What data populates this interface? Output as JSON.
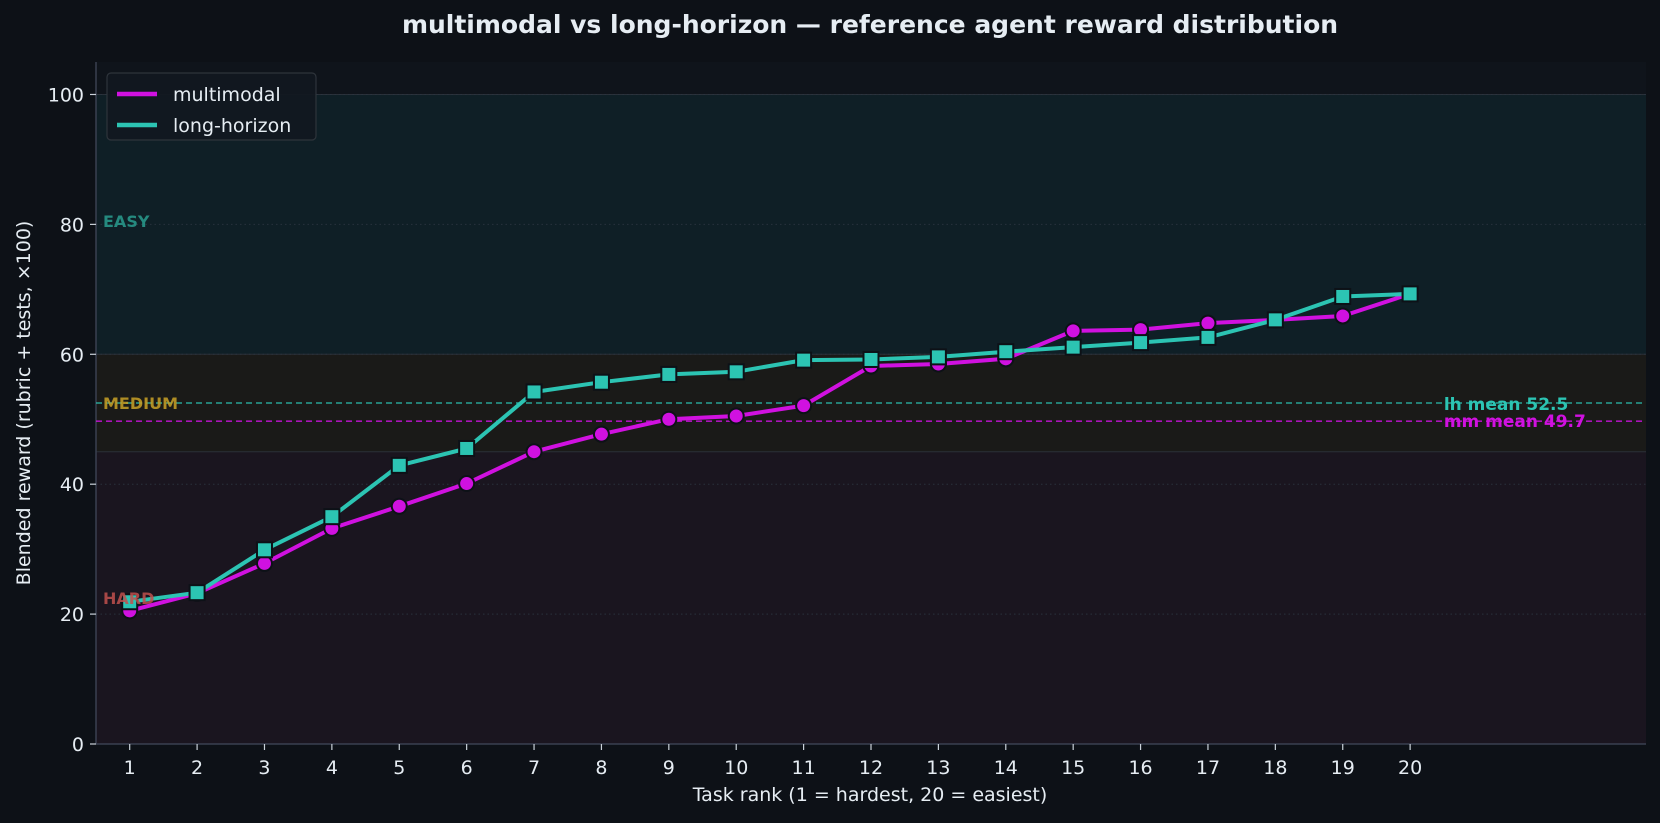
{
  "chart_data": {
    "type": "line",
    "title": "multimodal vs long-horizon — reference agent reward distribution",
    "xlabel": "Task rank (1 = hardest, 20 = easiest)",
    "ylabel": "Blended reward (rubric + tests, ×100)",
    "x": [
      1,
      2,
      3,
      4,
      5,
      6,
      7,
      8,
      9,
      10,
      11,
      12,
      13,
      14,
      15,
      16,
      17,
      18,
      19,
      20
    ],
    "xlim": [
      0.5,
      23.5
    ],
    "ylim": [
      0,
      105
    ],
    "yticks": [
      0,
      20,
      40,
      60,
      80,
      100
    ],
    "grid": true,
    "legend_position": "top-left",
    "series": [
      {
        "name": "multimodal",
        "color": "#d011e0",
        "marker": "circle",
        "values": [
          20.5,
          23.2,
          27.8,
          33.2,
          36.6,
          40.1,
          45.0,
          47.7,
          50.0,
          50.5,
          52.1,
          58.2,
          58.5,
          59.3,
          63.6,
          63.8,
          64.8,
          65.3,
          65.9,
          69.3
        ]
      },
      {
        "name": "long-horizon",
        "color": "#2cc4b3",
        "marker": "square",
        "values": [
          21.9,
          23.3,
          29.9,
          35.0,
          42.9,
          45.5,
          54.2,
          55.7,
          56.9,
          57.3,
          59.1,
          59.2,
          59.6,
          60.4,
          61.1,
          61.8,
          62.6,
          65.3,
          68.9,
          69.3
        ]
      }
    ],
    "bands": [
      {
        "label": "EASY",
        "from": 60,
        "to": 100,
        "fill": "#0f1f26",
        "label_color": "#2a9d8f",
        "label_y": 80.5
      },
      {
        "label": "MEDIUM",
        "from": 45,
        "to": 60,
        "fill": "#1a1a18",
        "label_color": "#c9a227",
        "label_y": 52.5
      },
      {
        "label": "HARD",
        "from": 0,
        "to": 45,
        "fill": "#1a151f",
        "label_color": "#c0504d",
        "label_y": 22.5
      }
    ],
    "mean_lines": [
      {
        "label": "lh mean 52.5",
        "value": 52.5,
        "color": "#2cc4b3"
      },
      {
        "label": "mm mean 49.7",
        "value": 49.7,
        "color": "#d011e0"
      }
    ]
  }
}
